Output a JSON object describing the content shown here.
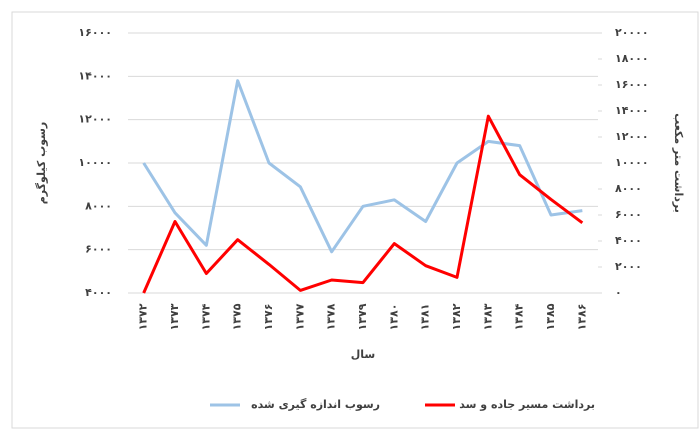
{
  "chart_data": {
    "type": "line",
    "categories": [
      "۱۳۷۲",
      "۱۳۷۳",
      "۱۳۷۴",
      "۱۳۷۵",
      "۱۳۷۶",
      "۱۳۷۷",
      "۱۳۷۸",
      "۱۳۷۹",
      "۱۳۸۰",
      "۱۳۸۱",
      "۱۳۸۲",
      "۱۳۸۳",
      "۱۳۸۴",
      "۱۳۸۵",
      "۱۳۸۶"
    ],
    "series": [
      {
        "name": "رسوب اندازه گیری شده",
        "color": "#9dc3e6",
        "values": [
          10000,
          7700,
          6200,
          13800,
          10000,
          8900,
          5900,
          8000,
          8300,
          7300,
          10000,
          11000,
          10800,
          7600,
          7800
        ]
      },
      {
        "name": "برداشت مسیر جاده و سد",
        "color": "#ff0000",
        "axis": "y2",
        "values": [
          0,
          5500,
          1500,
          4100,
          2200,
          200,
          1000,
          800,
          3800,
          2100,
          1200,
          13600,
          9100,
          7200,
          5400
        ]
      }
    ],
    "ylabel": "رسوب کیلوگرم",
    "y2label": "برداشت متر مکعب",
    "xlabel": "سال",
    "ylim": [
      4000,
      16000
    ],
    "yticks": [
      {
        "value": 4000,
        "label": "۴۰۰۰"
      },
      {
        "value": 6000,
        "label": "۶۰۰۰"
      },
      {
        "value": 8000,
        "label": "۸۰۰۰"
      },
      {
        "value": 10000,
        "label": "۱۰۰۰۰"
      },
      {
        "value": 12000,
        "label": "۱۲۰۰۰"
      },
      {
        "value": 14000,
        "label": "۱۴۰۰۰"
      },
      {
        "value": 16000,
        "label": "۱۶۰۰۰"
      }
    ],
    "y2lim": [
      0,
      20000
    ],
    "y2ticks": [
      {
        "value": 0,
        "label": "۰"
      },
      {
        "value": 2000,
        "label": "۲۰۰۰"
      },
      {
        "value": 4000,
        "label": "۴۰۰۰"
      },
      {
        "value": 6000,
        "label": "۶۰۰۰"
      },
      {
        "value": 8000,
        "label": "۸۰۰۰"
      },
      {
        "value": 10000,
        "label": "۱۰۰۰۰"
      },
      {
        "value": 12000,
        "label": "۱۲۰۰۰"
      },
      {
        "value": 14000,
        "label": "۱۴۰۰۰"
      },
      {
        "value": 16000,
        "label": "۱۶۰۰۰"
      },
      {
        "value": 18000,
        "label": "۱۸۰۰۰"
      },
      {
        "value": 20000,
        "label": "۲۰۰۰۰"
      }
    ],
    "grid": true
  }
}
